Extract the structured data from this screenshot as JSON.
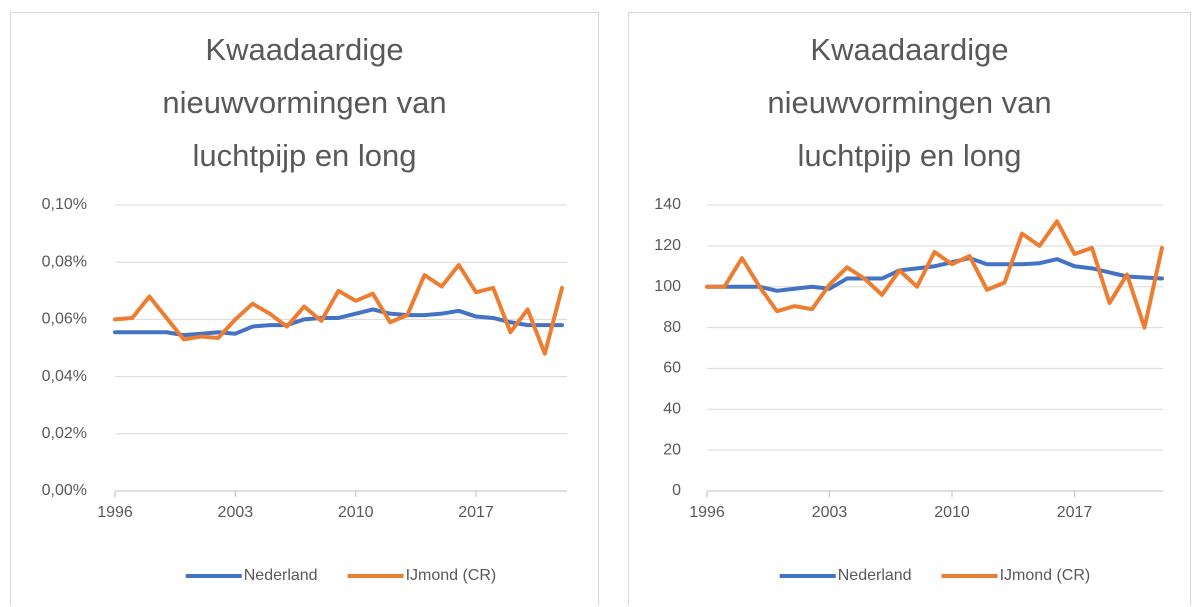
{
  "chart_data": [
    {
      "type": "line",
      "title": "Kwaadaardige nieuwvormingen van luchtpijp en long",
      "x": [
        1996,
        1997,
        1998,
        1999,
        2000,
        2001,
        2002,
        2003,
        2004,
        2005,
        2006,
        2007,
        2008,
        2009,
        2010,
        2011,
        2012,
        2013,
        2014,
        2015,
        2016,
        2017,
        2018,
        2019,
        2020,
        2021,
        2022
      ],
      "xlim": [
        1996,
        2022
      ],
      "xticks": [
        1996,
        2003,
        2010,
        2017
      ],
      "ylim": [
        0,
        0.1
      ],
      "yticks": [
        {
          "value": 0,
          "label": "0,00%"
        },
        {
          "value": 0.02,
          "label": "0,02%"
        },
        {
          "value": 0.04,
          "label": "0,04%"
        },
        {
          "value": 0.06,
          "label": "0,06%"
        },
        {
          "value": 0.08,
          "label": "0,08%"
        },
        {
          "value": 0.1,
          "label": "0,10%"
        }
      ],
      "grid": true,
      "legend": "bottom",
      "series": [
        {
          "name": "Nederland",
          "color": "#4472c4",
          "values": [
            0.0555,
            0.0555,
            0.0555,
            0.0555,
            0.0545,
            0.055,
            0.0555,
            0.055,
            0.0575,
            0.058,
            0.058,
            0.06,
            0.0605,
            0.0605,
            0.062,
            0.0635,
            0.062,
            0.0615,
            0.0615,
            0.062,
            0.063,
            0.061,
            0.0605,
            0.059,
            0.058,
            0.058,
            0.058
          ]
        },
        {
          "name": "IJmond (CR)",
          "color": "#ed7d31",
          "values": [
            0.06,
            0.0605,
            0.068,
            0.0605,
            0.053,
            0.054,
            0.0535,
            0.06,
            0.0655,
            0.062,
            0.0575,
            0.0645,
            0.0595,
            0.07,
            0.0665,
            0.069,
            0.059,
            0.0615,
            0.0755,
            0.0715,
            0.079,
            0.0695,
            0.071,
            0.0555,
            0.0635,
            0.048,
            0.071
          ]
        }
      ]
    },
    {
      "type": "line",
      "title": "Kwaadaardige nieuwvormingen van luchtpijp en long",
      "x": [
        1996,
        1997,
        1998,
        1999,
        2000,
        2001,
        2002,
        2003,
        2004,
        2005,
        2006,
        2007,
        2008,
        2009,
        2010,
        2011,
        2012,
        2013,
        2014,
        2015,
        2016,
        2017,
        2018,
        2019,
        2020,
        2021,
        2022
      ],
      "xlim": [
        1996,
        2022
      ],
      "xticks": [
        1996,
        2003,
        2010,
        2017
      ],
      "ylim": [
        0,
        140
      ],
      "yticks": [
        0,
        20,
        40,
        60,
        80,
        100,
        120,
        140
      ],
      "grid": true,
      "legend": "bottom",
      "series": [
        {
          "name": "Nederland",
          "color": "#4472c4",
          "values": [
            100,
            100,
            100,
            100,
            98,
            99,
            100,
            99,
            104,
            104,
            104,
            108,
            109,
            110,
            112,
            114,
            111,
            111,
            111,
            111.5,
            113.5,
            110,
            109,
            107,
            105,
            104.5,
            104
          ]
        },
        {
          "name": "IJmond (CR)",
          "color": "#ed7d31",
          "values": [
            100,
            100,
            114,
            100,
            88,
            90.5,
            89,
            101,
            109.5,
            104,
            96,
            108,
            100,
            117,
            111,
            115,
            98.5,
            102,
            126,
            120,
            132,
            116,
            119,
            92,
            106,
            80,
            119
          ]
        }
      ]
    }
  ]
}
